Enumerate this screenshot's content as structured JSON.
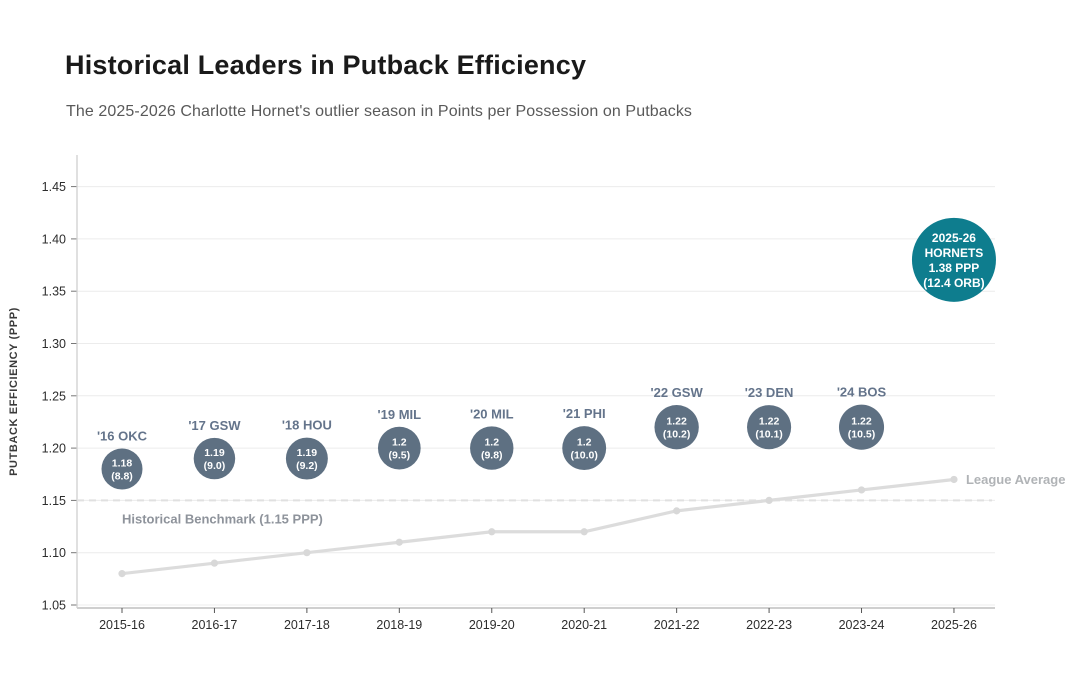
{
  "header": {
    "title": "Historical Leaders in Putback Efficiency",
    "subtitle": "The 2025-2026 Charlotte Hornet's outlier season in Points per Possession on Putbacks"
  },
  "chart_data": {
    "type": "scatter",
    "title": "Historical Leaders in Putback Efficiency",
    "subtitle": "The 2025-2026 Charlotte Hornet's outlier season in Points per Possession on Putbacks",
    "xlabel": "",
    "ylabel": "PUTBACK EFFICIENCY (PPP)",
    "x_categories": [
      "2015-16",
      "2016-17",
      "2017-18",
      "2018-19",
      "2019-20",
      "2020-21",
      "2021-22",
      "2022-23",
      "2023-24",
      "2025-26"
    ],
    "ylim": [
      1.05,
      1.475
    ],
    "yticks": [
      "1.05",
      "1.10",
      "1.15",
      "1.20",
      "1.25",
      "1.30",
      "1.35",
      "1.40",
      "1.45"
    ],
    "grid": "horizontal",
    "legend": "none",
    "leader_bubbles": [
      {
        "x": "2015-16",
        "label": "'16 OKC",
        "ppp": 1.18,
        "orb": 8.8,
        "ppp_text": "1.18",
        "orb_text": "(8.8)"
      },
      {
        "x": "2016-17",
        "label": "'17 GSW",
        "ppp": 1.19,
        "orb": 9.0,
        "ppp_text": "1.19",
        "orb_text": "(9.0)"
      },
      {
        "x": "2017-18",
        "label": "'18 HOU",
        "ppp": 1.19,
        "orb": 9.2,
        "ppp_text": "1.19",
        "orb_text": "(9.2)"
      },
      {
        "x": "2018-19",
        "label": "'19 MIL",
        "ppp": 1.2,
        "orb": 9.5,
        "ppp_text": "1.2",
        "orb_text": "(9.5)"
      },
      {
        "x": "2019-20",
        "label": "'20 MIL",
        "ppp": 1.2,
        "orb": 9.8,
        "ppp_text": "1.2",
        "orb_text": "(9.8)"
      },
      {
        "x": "2020-21",
        "label": "'21 PHI",
        "ppp": 1.2,
        "orb": 10.0,
        "ppp_text": "1.2",
        "orb_text": "(10.0)"
      },
      {
        "x": "2021-22",
        "label": "'22 GSW",
        "ppp": 1.22,
        "orb": 10.2,
        "ppp_text": "1.22",
        "orb_text": "(10.2)"
      },
      {
        "x": "2022-23",
        "label": "'23 DEN",
        "ppp": 1.22,
        "orb": 10.1,
        "ppp_text": "1.22",
        "orb_text": "(10.1)"
      },
      {
        "x": "2023-24",
        "label": "'24 BOS",
        "ppp": 1.22,
        "orb": 10.5,
        "ppp_text": "1.22",
        "orb_text": "(10.5)"
      }
    ],
    "highlight_bubble": {
      "x": "2025-26",
      "ppp": 1.38,
      "orb": 12.4,
      "lines": [
        "2025-26",
        "HORNETS",
        "1.38 PPP",
        "(12.4 ORB)"
      ]
    },
    "league_average": {
      "label": "League Average",
      "values": [
        1.08,
        1.09,
        1.1,
        1.11,
        1.12,
        1.12,
        1.14,
        1.15,
        1.16,
        1.17
      ]
    },
    "benchmark": {
      "label": "Historical Benchmark (1.15 PPP)",
      "value": 1.15
    },
    "colors": {
      "bubble": "#5e7082",
      "bubble_text": "#ffffff",
      "bubble_label": "#64748b",
      "highlight": "#0e7d8e",
      "league_line": "#dcdcdc",
      "league_marker": "#d8d8d8",
      "league_label": "#b0b3b6",
      "benchmark_line": "#e0e0e0",
      "benchmark_label": "#8e939b",
      "grid": "#ececec",
      "spine": "#cfcfcf",
      "tick": "#777777",
      "tick_label": "#2d2d2d",
      "axis_label": "#3a3a3a",
      "title": "#1a1a1a",
      "subtitle": "#595959"
    }
  }
}
